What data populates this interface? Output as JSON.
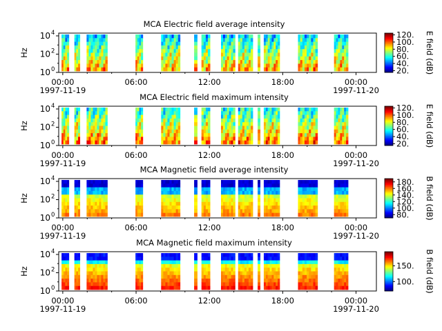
{
  "chart_data": [
    {
      "type": "heatmap",
      "title": "MCA  Electric field average intensity",
      "ylabel": "Hz",
      "y_scale": "log",
      "ylim": [
        1,
        20000
      ],
      "y_ticks": [
        {
          "base": "10",
          "exp": "0"
        },
        {
          "base": "10",
          "exp": "2"
        },
        {
          "base": "10",
          "exp": "4"
        }
      ],
      "x_ticks": [
        "00:00",
        "06:00",
        "12:00",
        "18:00",
        "00:00"
      ],
      "x_dates": [
        "1997-11-19",
        "1997-11-20"
      ],
      "colorbar": {
        "label": "E field (dB)",
        "range": [
          15,
          125
        ],
        "ticks": [
          "20.",
          "40.",
          "60.",
          "80.",
          "100.",
          "120."
        ],
        "tick_values": [
          20,
          40,
          60,
          80,
          100,
          120
        ]
      },
      "data_segments_hours": [
        [
          -0.1,
          0.5
        ],
        [
          0.95,
          1.4
        ],
        [
          1.95,
          3.65
        ],
        [
          5.95,
          6.55
        ],
        [
          8.05,
          9.6
        ],
        [
          10.75,
          11.0
        ],
        [
          11.35,
          12.05
        ],
        [
          12.95,
          14.1
        ],
        [
          14.35,
          15.55
        ],
        [
          15.95,
          16.15
        ],
        [
          16.45,
          17.75
        ],
        [
          19.25,
          20.85
        ],
        [
          22.2,
          23.35
        ]
      ]
    },
    {
      "type": "heatmap",
      "title": "MCA  Electric field maximum intensity",
      "ylabel": "Hz",
      "y_scale": "log",
      "ylim": [
        1,
        20000
      ],
      "y_ticks": [
        {
          "base": "10",
          "exp": "0"
        },
        {
          "base": "10",
          "exp": "2"
        },
        {
          "base": "10",
          "exp": "4"
        }
      ],
      "x_ticks": [
        "00:00",
        "06:00",
        "12:00",
        "18:00",
        "00:00"
      ],
      "x_dates": [
        "1997-11-19",
        "1997-11-20"
      ],
      "colorbar": {
        "label": "E field (dB)",
        "range": [
          15,
          125
        ],
        "ticks": [
          "20.",
          "40.",
          "60.",
          "80.",
          "100.",
          "120."
        ],
        "tick_values": [
          20,
          40,
          60,
          80,
          100,
          120
        ]
      },
      "data_segments_hours": [
        [
          -0.1,
          0.5
        ],
        [
          0.95,
          1.4
        ],
        [
          1.95,
          3.65
        ],
        [
          5.95,
          6.55
        ],
        [
          8.05,
          9.6
        ],
        [
          10.75,
          11.0
        ],
        [
          11.35,
          12.05
        ],
        [
          12.95,
          14.1
        ],
        [
          14.35,
          15.55
        ],
        [
          15.95,
          16.15
        ],
        [
          16.45,
          17.75
        ],
        [
          19.25,
          20.85
        ],
        [
          22.2,
          23.35
        ]
      ]
    },
    {
      "type": "heatmap",
      "title": "MCA  Magnetic field average intensity",
      "ylabel": "Hz",
      "y_scale": "log",
      "ylim": [
        1,
        20000
      ],
      "y_ticks": [
        {
          "base": "10",
          "exp": "0"
        },
        {
          "base": "10",
          "exp": "2"
        },
        {
          "base": "10",
          "exp": "4"
        }
      ],
      "x_ticks": [
        "00:00",
        "06:00",
        "12:00",
        "18:00",
        "00:00"
      ],
      "x_dates": [
        "1997-11-19",
        "1997-11-20"
      ],
      "colorbar": {
        "label": "B field (dB)",
        "range": [
          70,
          190
        ],
        "ticks": [
          "80.",
          "100.",
          "120.",
          "140.",
          "160.",
          "180."
        ],
        "tick_values": [
          80,
          100,
          120,
          140,
          160,
          180
        ]
      },
      "data_segments_hours": [
        [
          -0.1,
          0.5
        ],
        [
          0.95,
          1.4
        ],
        [
          1.95,
          3.65
        ],
        [
          5.95,
          6.55
        ],
        [
          8.05,
          9.6
        ],
        [
          10.75,
          11.0
        ],
        [
          11.35,
          12.05
        ],
        [
          12.95,
          14.1
        ],
        [
          14.35,
          15.55
        ],
        [
          15.95,
          16.15
        ],
        [
          16.45,
          17.75
        ],
        [
          19.25,
          20.85
        ],
        [
          22.2,
          23.35
        ]
      ]
    },
    {
      "type": "heatmap",
      "title": "MCA  Magnetic field maximum intensity",
      "ylabel": "Hz",
      "y_scale": "log",
      "ylim": [
        1,
        20000
      ],
      "y_ticks": [
        {
          "base": "10",
          "exp": "0"
        },
        {
          "base": "10",
          "exp": "2"
        },
        {
          "base": "10",
          "exp": "4"
        }
      ],
      "x_ticks": [
        "00:00",
        "06:00",
        "12:00",
        "18:00",
        "00:00"
      ],
      "x_dates": [
        "1997-11-19",
        "1997-11-20"
      ],
      "colorbar": {
        "label": "B field (dB)",
        "range": [
          70,
          195
        ],
        "ticks": [
          "100.",
          "150."
        ],
        "tick_values": [
          100,
          150
        ]
      },
      "data_segments_hours": [
        [
          -0.1,
          0.5
        ],
        [
          0.95,
          1.4
        ],
        [
          1.95,
          3.65
        ],
        [
          5.95,
          6.55
        ],
        [
          8.05,
          9.6
        ],
        [
          10.75,
          11.0
        ],
        [
          11.35,
          12.05
        ],
        [
          12.95,
          14.1
        ],
        [
          14.35,
          15.55
        ],
        [
          15.95,
          16.15
        ],
        [
          16.45,
          17.75
        ],
        [
          19.25,
          20.85
        ],
        [
          22.2,
          23.35
        ]
      ]
    }
  ]
}
